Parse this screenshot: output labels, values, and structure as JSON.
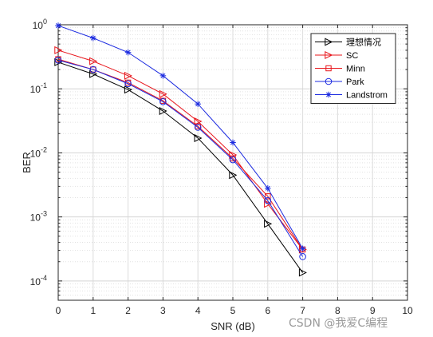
{
  "chart_data": {
    "type": "line",
    "xlabel": "SNR (dB)",
    "ylabel": "BER",
    "xlim": [
      0,
      10
    ],
    "ylim": [
      5e-05,
      1
    ],
    "yscale": "log",
    "grid": true,
    "legend_position": "top-right",
    "x_ticks": [
      "0",
      "1",
      "2",
      "3",
      "4",
      "5",
      "6",
      "7",
      "8",
      "9",
      "10"
    ],
    "y_ticks": [
      {
        "base": "10",
        "exp": "0",
        "value": 1
      },
      {
        "base": "10",
        "exp": "-1",
        "value": 0.1
      },
      {
        "base": "10",
        "exp": "-2",
        "value": 0.01
      },
      {
        "base": "10",
        "exp": "-3",
        "value": 0.001
      },
      {
        "base": "10",
        "exp": "-4",
        "value": 0.0001
      }
    ],
    "series": [
      {
        "name": "理想情况",
        "color": "#000000",
        "marker": "triangle-right",
        "x": [
          0,
          1,
          2,
          3,
          4,
          5,
          6,
          7
        ],
        "y": [
          0.26,
          0.17,
          0.097,
          0.045,
          0.017,
          0.0045,
          0.00078,
          0.000135
        ]
      },
      {
        "name": "SC",
        "color": "#e8141a",
        "marker": "triangle-right",
        "x": [
          0,
          1,
          2,
          3,
          4,
          5,
          6,
          7
        ],
        "y": [
          0.4,
          0.27,
          0.16,
          0.083,
          0.031,
          0.0093,
          0.0016,
          0.00031
        ]
      },
      {
        "name": "Minn",
        "color": "#e8141a",
        "marker": "square",
        "x": [
          0,
          1,
          2,
          3,
          4,
          5,
          6,
          7
        ],
        "y": [
          0.29,
          0.2,
          0.125,
          0.065,
          0.026,
          0.0082,
          0.0021,
          0.00031
        ]
      },
      {
        "name": "Park",
        "color": "#1c2be0",
        "marker": "circle",
        "x": [
          0,
          1,
          2,
          3,
          4,
          5,
          6,
          7
        ],
        "y": [
          0.28,
          0.2,
          0.12,
          0.063,
          0.025,
          0.0078,
          0.0018,
          0.00024
        ]
      },
      {
        "name": "Landstrom",
        "color": "#1c2be0",
        "marker": "star",
        "x": [
          0,
          1,
          2,
          3,
          4,
          5,
          6,
          7
        ],
        "y": [
          0.97,
          0.62,
          0.37,
          0.16,
          0.058,
          0.0145,
          0.0028,
          0.00032
        ]
      }
    ]
  },
  "watermark": "CSDN @我爱C编程"
}
